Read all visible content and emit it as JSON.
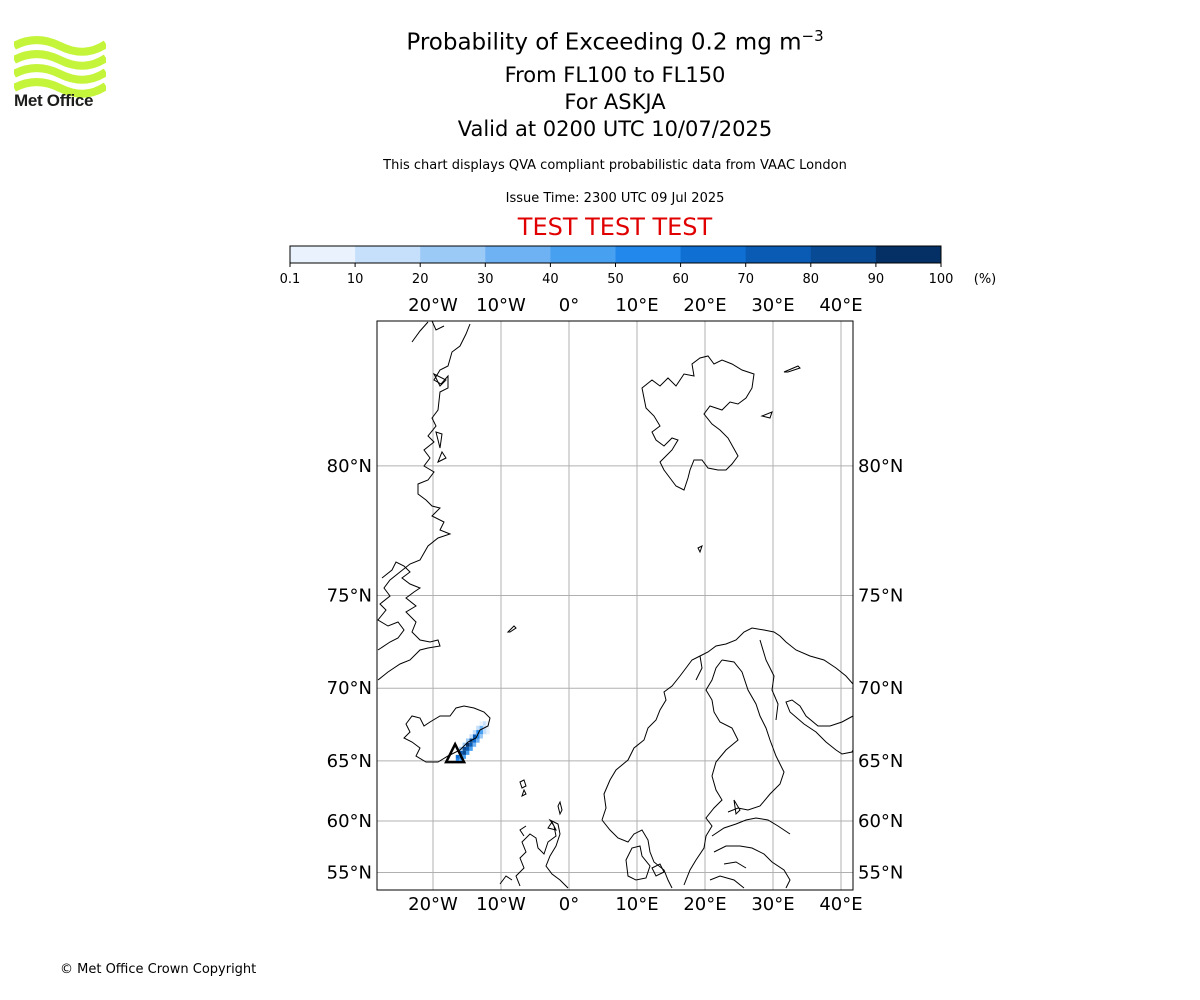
{
  "branding": {
    "logo_text": "Met Office",
    "logo_icon": "met-office-wave-logo",
    "logo_color": "#c4f53a"
  },
  "titles": {
    "line1": "Probability of Exceeding 0.2 mg m",
    "line1_exp": "−3",
    "line2": "From FL100 to FL150",
    "line3": "For ASKJA",
    "line4": "Valid at 0200 UTC 10/07/2025"
  },
  "subtitle": "This chart displays QVA compliant probabilistic data from VAAC London",
  "issue_time": "Issue Time: 2300 UTC 09 Jul 2025",
  "test_banner": "TEST TEST TEST",
  "test_color": "#e00000",
  "colorbar": {
    "ticks": [
      "0.1",
      "10",
      "20",
      "30",
      "40",
      "50",
      "60",
      "70",
      "80",
      "90",
      "100"
    ],
    "unit": "(%)",
    "colors": [
      "#eaf3fd",
      "#c6e0fb",
      "#9ccaf7",
      "#6fb2f3",
      "#48a0f0",
      "#2388eb",
      "#0f6fd2",
      "#0a5bb3",
      "#084a93",
      "#053066"
    ]
  },
  "map": {
    "lon_labels": [
      "20°W",
      "10°W",
      "0°",
      "10°E",
      "20°E",
      "30°E",
      "40°E"
    ],
    "lat_labels": [
      "80°N",
      "75°N",
      "70°N",
      "65°N",
      "60°N",
      "55°N"
    ],
    "grid_color": "#b0b0b0",
    "volcano_name": "ASKJA",
    "plume_cells": [
      {
        "lon": -16.4,
        "lat": 65.0,
        "p": 55
      },
      {
        "lon": -15.9,
        "lat": 65.0,
        "p": 45
      },
      {
        "lon": -16.4,
        "lat": 65.3,
        "p": 60
      },
      {
        "lon": -15.9,
        "lat": 65.3,
        "p": 65
      },
      {
        "lon": -15.4,
        "lat": 65.3,
        "p": 40
      },
      {
        "lon": -15.9,
        "lat": 65.6,
        "p": 70
      },
      {
        "lon": -15.4,
        "lat": 65.6,
        "p": 80
      },
      {
        "lon": -14.9,
        "lat": 65.6,
        "p": 45
      },
      {
        "lon": -15.4,
        "lat": 65.9,
        "p": 85
      },
      {
        "lon": -14.9,
        "lat": 65.9,
        "p": 75
      },
      {
        "lon": -14.4,
        "lat": 65.9,
        "p": 40
      },
      {
        "lon": -15.9,
        "lat": 65.9,
        "p": 25
      },
      {
        "lon": -14.9,
        "lat": 66.2,
        "p": 90
      },
      {
        "lon": -14.4,
        "lat": 66.2,
        "p": 70
      },
      {
        "lon": -13.9,
        "lat": 66.2,
        "p": 35
      },
      {
        "lon": -15.4,
        "lat": 66.2,
        "p": 20
      },
      {
        "lon": -14.4,
        "lat": 66.5,
        "p": 85
      },
      {
        "lon": -13.9,
        "lat": 66.5,
        "p": 65
      },
      {
        "lon": -13.4,
        "lat": 66.5,
        "p": 30
      },
      {
        "lon": -14.9,
        "lat": 66.5,
        "p": 20
      },
      {
        "lon": -13.9,
        "lat": 66.8,
        "p": 75
      },
      {
        "lon": -13.4,
        "lat": 66.8,
        "p": 55
      },
      {
        "lon": -12.9,
        "lat": 66.8,
        "p": 20
      },
      {
        "lon": -14.4,
        "lat": 66.8,
        "p": 15
      },
      {
        "lon": -13.4,
        "lat": 67.1,
        "p": 55
      },
      {
        "lon": -12.9,
        "lat": 67.1,
        "p": 40
      },
      {
        "lon": -12.4,
        "lat": 67.1,
        "p": 12
      },
      {
        "lon": -13.9,
        "lat": 67.1,
        "p": 12
      },
      {
        "lon": -12.9,
        "lat": 67.4,
        "p": 30
      },
      {
        "lon": -12.4,
        "lat": 67.4,
        "p": 18
      },
      {
        "lon": -13.4,
        "lat": 67.4,
        "p": 10
      },
      {
        "lon": -12.4,
        "lat": 67.7,
        "p": 12
      },
      {
        "lon": -12.9,
        "lat": 67.7,
        "p": 8
      },
      {
        "lon": -12.0,
        "lat": 67.7,
        "p": 5
      },
      {
        "lon": -11.9,
        "lat": 67.4,
        "p": 8
      },
      {
        "lon": -11.9,
        "lat": 67.1,
        "p": 5
      }
    ]
  },
  "copyright": "© Met Office Crown Copyright"
}
